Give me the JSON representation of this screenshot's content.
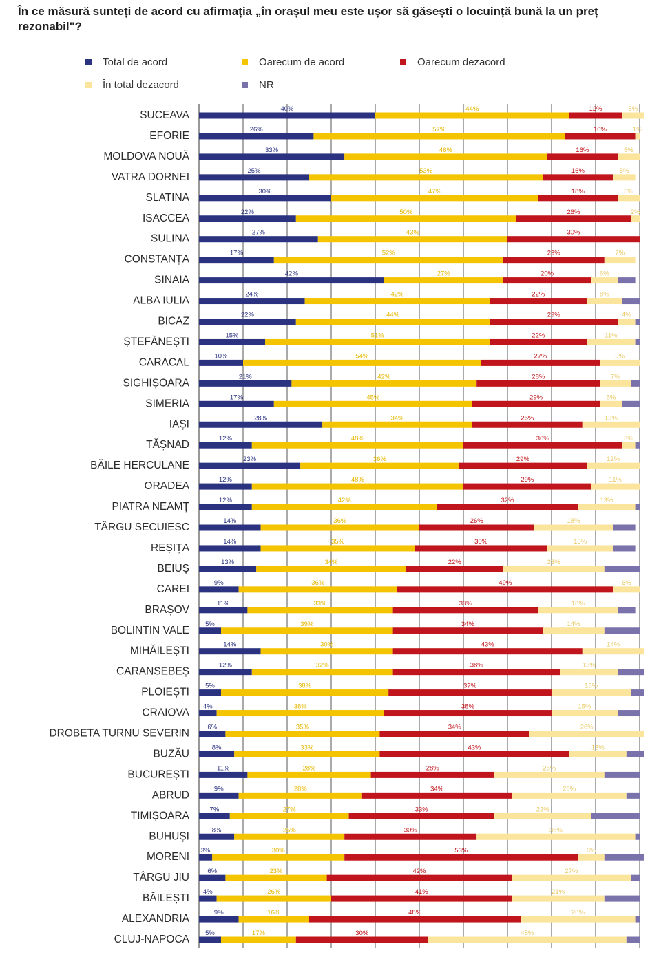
{
  "title": "În ce măsură sunteți de acord cu afirmația „în orașul meu este ușor să găsești o locuință bună la un preț rezonabil\"?",
  "colors": {
    "total_acord": "#2b3380",
    "oarecum_acord": "#f5c400",
    "oarecum_dezacord": "#c0151c",
    "total_dezacord": "#fbe49c",
    "nr": "#7a72aa"
  },
  "chart_data": {
    "type": "bar",
    "orientation": "horizontal-stacked",
    "xlim": [
      0,
      100
    ],
    "grid": true,
    "legend_position": "top",
    "title": "În ce măsură sunteți de acord cu afirmația „în orașul meu este ușor să găsești o locuință bună la un preț rezonabil\"?",
    "categories": [
      "SUCEAVA",
      "EFORIE",
      "MOLDOVA NOUĂ",
      "VATRA DORNEI",
      "SLATINA",
      "ISACCEA",
      "SULINA",
      "CONSTANȚA",
      "SINAIA",
      "ALBA IULIA",
      "BICAZ",
      "ȘTEFĂNEȘTI",
      "CARACAL",
      "SIGHIȘOARA",
      "SIMERIA",
      "IAȘI",
      "TĂȘNAD",
      "BĂILE HERCULANE",
      "ORADEA",
      "PIATRA NEAMȚ",
      "TÂRGU SECUIESC",
      "REȘIȚA",
      "BEIUȘ",
      "CAREI",
      "BRAȘOV",
      "BOLINTIN VALE",
      "MIHĂILEȘTI",
      "CARANSEBEȘ",
      "PLOIEȘTI",
      "CRAIOVA",
      "DROBETA TURNU SEVERIN",
      "BUZĂU",
      "BUCUREȘTI",
      "ABRUD",
      "TIMIȘOARA",
      "BUHUȘI",
      "MORENI",
      "TÂRGU JIU",
      "BĂILEȘTI",
      "ALEXANDRIA",
      "CLUJ-NAPOCA"
    ],
    "series": [
      {
        "name": "Total de acord",
        "color": "#2b3380",
        "values": [
          40,
          26,
          33,
          25,
          30,
          22,
          27,
          17,
          42,
          24,
          22,
          15,
          10,
          21,
          17,
          28,
          12,
          23,
          12,
          12,
          14,
          14,
          13,
          9,
          11,
          5,
          14,
          12,
          5,
          4,
          6,
          8,
          11,
          9,
          7,
          8,
          3,
          6,
          4,
          9,
          5
        ]
      },
      {
        "name": "Oarecum de acord",
        "color": "#f5c400",
        "values": [
          44,
          57,
          46,
          53,
          47,
          50,
          43,
          52,
          27,
          42,
          44,
          51,
          54,
          42,
          45,
          34,
          48,
          36,
          48,
          42,
          36,
          35,
          34,
          36,
          33,
          39,
          30,
          32,
          38,
          38,
          35,
          33,
          28,
          28,
          27,
          25,
          30,
          23,
          26,
          16,
          17
        ]
      },
      {
        "name": "Oarecum dezacord",
        "color": "#c0151c",
        "values": [
          12,
          16,
          16,
          16,
          18,
          26,
          30,
          23,
          20,
          22,
          29,
          22,
          27,
          28,
          29,
          25,
          36,
          29,
          29,
          32,
          26,
          30,
          22,
          49,
          33,
          34,
          43,
          38,
          37,
          38,
          34,
          43,
          28,
          34,
          33,
          30,
          53,
          42,
          41,
          48,
          30
        ]
      },
      {
        "name": "În total dezacord",
        "color": "#fbe49c",
        "values": [
          5,
          1,
          5,
          5,
          5,
          2,
          0,
          7,
          6,
          8,
          4,
          11,
          9,
          7,
          5,
          13,
          3,
          12,
          11,
          13,
          18,
          15,
          23,
          6,
          18,
          14,
          14,
          13,
          18,
          15,
          26,
          13,
          25,
          26,
          22,
          36,
          6,
          27,
          21,
          26,
          45
        ]
      },
      {
        "name": "NR",
        "color": "#7a72aa",
        "values": [
          0,
          0,
          0,
          0,
          0,
          0,
          0,
          0,
          4,
          4,
          1,
          1,
          0,
          2,
          4,
          0,
          1,
          0,
          0,
          1,
          5,
          5,
          8,
          0,
          4,
          8,
          0,
          6,
          3,
          5,
          0,
          4,
          8,
          3,
          11,
          1,
          9,
          2,
          8,
          1,
          3
        ]
      }
    ],
    "label_visible": [
      [
        true,
        true,
        true,
        true,
        false
      ],
      [
        true,
        true,
        true,
        true,
        false
      ],
      [
        true,
        true,
        true,
        true,
        false
      ],
      [
        true,
        true,
        true,
        true,
        false
      ],
      [
        true,
        true,
        true,
        true,
        false
      ],
      [
        true,
        true,
        true,
        true,
        false
      ],
      [
        true,
        true,
        true,
        true,
        false
      ],
      [
        true,
        true,
        true,
        true,
        false
      ],
      [
        true,
        true,
        true,
        true,
        false
      ],
      [
        true,
        true,
        true,
        true,
        false
      ],
      [
        true,
        true,
        true,
        true,
        false
      ],
      [
        true,
        true,
        true,
        true,
        false
      ],
      [
        true,
        true,
        true,
        true,
        false
      ],
      [
        true,
        true,
        true,
        true,
        false
      ],
      [
        true,
        true,
        true,
        true,
        false
      ],
      [
        true,
        true,
        true,
        true,
        false
      ],
      [
        true,
        true,
        true,
        true,
        false
      ],
      [
        true,
        true,
        true,
        true,
        false
      ],
      [
        true,
        true,
        true,
        true,
        false
      ],
      [
        true,
        true,
        true,
        true,
        false
      ],
      [
        true,
        true,
        true,
        true,
        false
      ],
      [
        true,
        true,
        true,
        true,
        false
      ],
      [
        true,
        true,
        true,
        true,
        false
      ],
      [
        true,
        true,
        true,
        true,
        false
      ],
      [
        true,
        true,
        true,
        true,
        false
      ],
      [
        true,
        true,
        true,
        true,
        false
      ],
      [
        true,
        true,
        true,
        true,
        false
      ],
      [
        true,
        true,
        true,
        true,
        false
      ],
      [
        true,
        true,
        true,
        true,
        false
      ],
      [
        true,
        true,
        true,
        true,
        false
      ],
      [
        true,
        true,
        true,
        true,
        false
      ],
      [
        true,
        true,
        true,
        true,
        false
      ],
      [
        true,
        true,
        true,
        true,
        false
      ],
      [
        true,
        true,
        true,
        true,
        false
      ],
      [
        true,
        true,
        true,
        true,
        false
      ],
      [
        true,
        true,
        true,
        true,
        false
      ],
      [
        true,
        true,
        true,
        true,
        false
      ],
      [
        true,
        true,
        true,
        true,
        false
      ],
      [
        true,
        true,
        true,
        true,
        false
      ],
      [
        true,
        true,
        true,
        true,
        false
      ],
      [
        true,
        true,
        true,
        true,
        false
      ]
    ]
  }
}
